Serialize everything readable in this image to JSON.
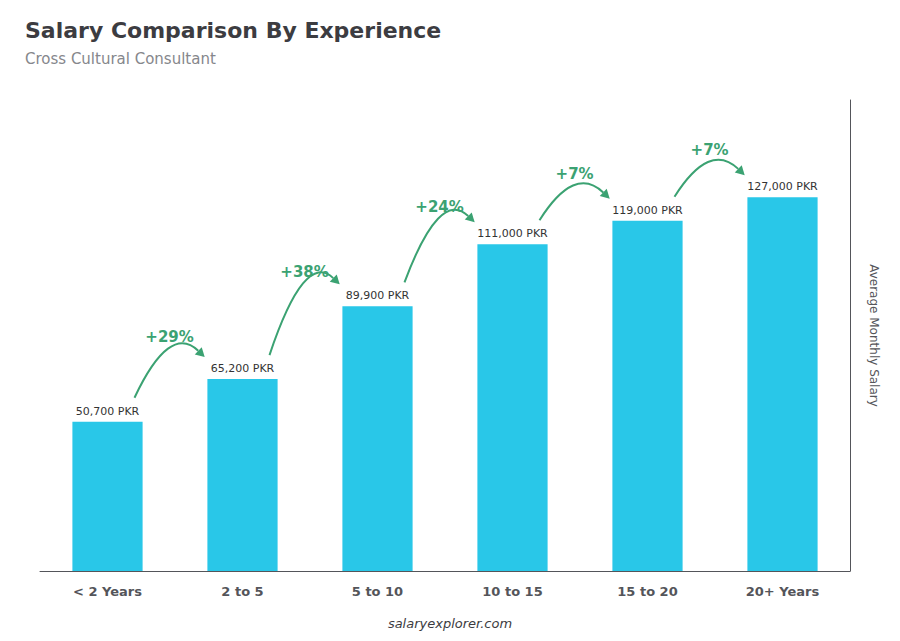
{
  "chart_data": {
    "type": "bar",
    "title": "Salary Comparison By Experience",
    "subtitle": "Cross Cultural Consultant",
    "categories": [
      "< 2 Years",
      "2 to 5",
      "5 to 10",
      "10 to 15",
      "15 to 20",
      "20+ Years"
    ],
    "values": [
      50700,
      65200,
      89900,
      111000,
      119000,
      127000
    ],
    "value_labels": [
      "50,700 PKR",
      "65,200 PKR",
      "89,900 PKR",
      "111,000 PKR",
      "119,000 PKR",
      "127,000 PKR"
    ],
    "data_labels": true,
    "color": "#29C7E8",
    "ylabel": "Average Monthly Salary",
    "ylim": [
      0,
      160000
    ],
    "yticks": [],
    "tick_labels": "x",
    "grid": false,
    "annotations": [
      {
        "text": "+29%",
        "from": "< 2 Years",
        "to": "2 to 5"
      },
      {
        "text": "+38%",
        "from": "2 to 5",
        "to": "5 to 10"
      },
      {
        "text": "+24%",
        "from": "5 to 10",
        "to": "10 to 15"
      },
      {
        "text": "+7%",
        "from": "10 to 15",
        "to": "15 to 20"
      },
      {
        "text": "+7%",
        "from": "15 to 20",
        "to": "20+ Years"
      }
    ],
    "footer": "salaryexplorer.com"
  }
}
